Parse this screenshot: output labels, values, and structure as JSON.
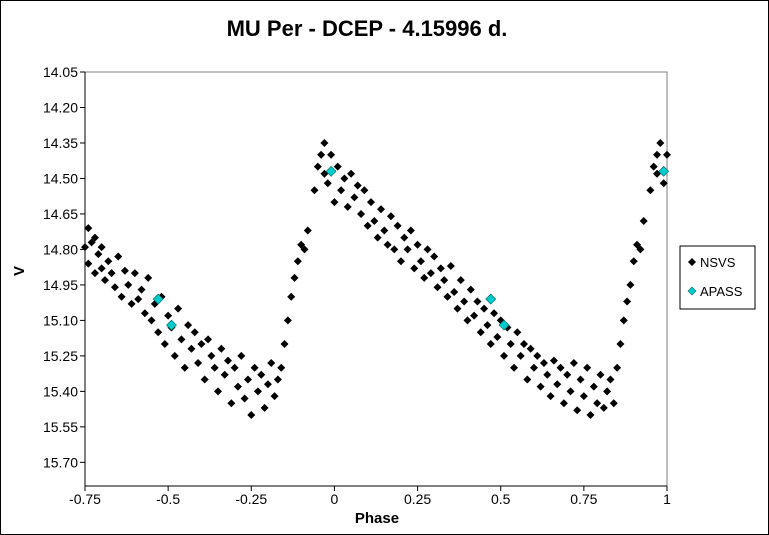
{
  "chart_data": {
    "type": "scatter",
    "title": "MU Per - DCEP - 4.15996 d.",
    "xlabel": "Phase",
    "ylabel": "V",
    "xlim": [
      -0.75,
      1.0
    ],
    "ylim": [
      15.8,
      14.05
    ],
    "y_inverted": true,
    "grid": false,
    "legend_position": "right",
    "x_ticks": [
      "-0.75",
      "-0.5",
      "-0.25",
      "0",
      "0.25",
      "0.5",
      "0.75",
      "1"
    ],
    "x_tick_values": [
      -0.75,
      -0.5,
      -0.25,
      0,
      0.25,
      0.5,
      0.75,
      1.0
    ],
    "y_ticks": [
      "14.05",
      "14.20",
      "14.35",
      "14.50",
      "14.65",
      "14.80",
      "14.95",
      "15.10",
      "15.25",
      "15.40",
      "15.55",
      "15.70"
    ],
    "y_tick_values": [
      14.05,
      14.2,
      14.35,
      14.5,
      14.65,
      14.8,
      14.95,
      15.1,
      15.25,
      15.4,
      15.55,
      15.7
    ],
    "series": [
      {
        "name": "NSVS",
        "color": "#000000",
        "marker": "diamond",
        "points": [
          [
            -0.75,
            14.79
          ],
          [
            -0.74,
            14.71
          ],
          [
            -0.74,
            14.86
          ],
          [
            -0.73,
            14.77
          ],
          [
            -0.72,
            14.75
          ],
          [
            -0.72,
            14.9
          ],
          [
            -0.71,
            14.82
          ],
          [
            -0.7,
            14.79
          ],
          [
            -0.7,
            14.88
          ],
          [
            -0.69,
            14.93
          ],
          [
            -0.68,
            14.85
          ],
          [
            -0.67,
            14.9
          ],
          [
            -0.66,
            14.96
          ],
          [
            -0.65,
            14.83
          ],
          [
            -0.64,
            15.0
          ],
          [
            -0.63,
            14.89
          ],
          [
            -0.62,
            14.95
          ],
          [
            -0.61,
            15.03
          ],
          [
            -0.6,
            14.9
          ],
          [
            -0.59,
            15.01
          ],
          [
            -0.58,
            14.97
          ],
          [
            -0.57,
            15.07
          ],
          [
            -0.56,
            14.92
          ],
          [
            -0.55,
            15.1
          ],
          [
            -0.54,
            15.03
          ],
          [
            -0.53,
            15.15
          ],
          [
            -0.52,
            15.0
          ],
          [
            -0.51,
            15.2
          ],
          [
            -0.5,
            15.08
          ],
          [
            -0.49,
            15.13
          ],
          [
            -0.48,
            15.25
          ],
          [
            -0.47,
            15.05
          ],
          [
            -0.46,
            15.18
          ],
          [
            -0.45,
            15.3
          ],
          [
            -0.44,
            15.12
          ],
          [
            -0.43,
            15.22
          ],
          [
            -0.42,
            15.15
          ],
          [
            -0.41,
            15.28
          ],
          [
            -0.4,
            15.2
          ],
          [
            -0.39,
            15.35
          ],
          [
            -0.38,
            15.18
          ],
          [
            -0.37,
            15.25
          ],
          [
            -0.36,
            15.3
          ],
          [
            -0.35,
            15.4
          ],
          [
            -0.34,
            15.22
          ],
          [
            -0.33,
            15.33
          ],
          [
            -0.32,
            15.27
          ],
          [
            -0.31,
            15.45
          ],
          [
            -0.3,
            15.3
          ],
          [
            -0.29,
            15.38
          ],
          [
            -0.28,
            15.25
          ],
          [
            -0.27,
            15.43
          ],
          [
            -0.26,
            15.35
          ],
          [
            -0.25,
            15.5
          ],
          [
            -0.24,
            15.3
          ],
          [
            -0.23,
            15.4
          ],
          [
            -0.22,
            15.33
          ],
          [
            -0.21,
            15.47
          ],
          [
            -0.2,
            15.37
          ],
          [
            -0.19,
            15.28
          ],
          [
            -0.18,
            15.42
          ],
          [
            -0.17,
            15.35
          ],
          [
            -0.16,
            15.3
          ],
          [
            -0.15,
            15.2
          ],
          [
            -0.14,
            15.1
          ],
          [
            -0.13,
            15.0
          ],
          [
            -0.12,
            14.92
          ],
          [
            -0.11,
            14.85
          ],
          [
            -0.1,
            14.78
          ],
          [
            -0.09,
            14.8
          ],
          [
            -0.08,
            14.72
          ],
          [
            -0.06,
            14.55
          ],
          [
            -0.05,
            14.45
          ],
          [
            -0.04,
            14.4
          ],
          [
            -0.03,
            14.48
          ],
          [
            -0.03,
            14.35
          ],
          [
            -0.02,
            14.52
          ],
          [
            -0.01,
            14.4
          ],
          [
            0.0,
            14.6
          ],
          [
            0.01,
            14.45
          ],
          [
            0.02,
            14.55
          ],
          [
            0.03,
            14.5
          ],
          [
            0.04,
            14.62
          ],
          [
            0.05,
            14.48
          ],
          [
            0.06,
            14.58
          ],
          [
            0.07,
            14.53
          ],
          [
            0.08,
            14.65
          ],
          [
            0.09,
            14.55
          ],
          [
            0.1,
            14.7
          ],
          [
            0.11,
            14.6
          ],
          [
            0.12,
            14.68
          ],
          [
            0.13,
            14.75
          ],
          [
            0.14,
            14.63
          ],
          [
            0.15,
            14.72
          ],
          [
            0.16,
            14.78
          ],
          [
            0.17,
            14.66
          ],
          [
            0.18,
            14.8
          ],
          [
            0.19,
            14.7
          ],
          [
            0.2,
            14.85
          ],
          [
            0.21,
            14.75
          ],
          [
            0.22,
            14.8
          ],
          [
            0.23,
            14.72
          ],
          [
            0.24,
            14.88
          ],
          [
            0.25,
            14.78
          ],
          [
            0.26,
            14.85
          ],
          [
            0.27,
            14.92
          ],
          [
            0.28,
            14.8
          ],
          [
            0.29,
            14.9
          ],
          [
            0.3,
            14.83
          ],
          [
            0.31,
            14.96
          ],
          [
            0.32,
            14.88
          ],
          [
            0.33,
            14.93
          ],
          [
            0.34,
            15.0
          ],
          [
            0.35,
            14.87
          ],
          [
            0.36,
            14.98
          ],
          [
            0.37,
            15.05
          ],
          [
            0.38,
            14.93
          ],
          [
            0.39,
            15.02
          ],
          [
            0.4,
            15.1
          ],
          [
            0.41,
            14.97
          ],
          [
            0.42,
            15.08
          ],
          [
            0.43,
            15.02
          ],
          [
            0.44,
            15.15
          ],
          [
            0.45,
            15.05
          ],
          [
            0.46,
            15.12
          ],
          [
            0.47,
            15.2
          ],
          [
            0.48,
            15.07
          ],
          [
            0.49,
            15.17
          ],
          [
            0.5,
            15.1
          ],
          [
            0.51,
            15.25
          ],
          [
            0.52,
            15.13
          ],
          [
            0.53,
            15.2
          ],
          [
            0.54,
            15.3
          ],
          [
            0.55,
            15.15
          ],
          [
            0.56,
            15.25
          ],
          [
            0.57,
            15.2
          ],
          [
            0.58,
            15.35
          ],
          [
            0.59,
            15.22
          ],
          [
            0.6,
            15.3
          ],
          [
            0.61,
            15.25
          ],
          [
            0.62,
            15.38
          ],
          [
            0.63,
            15.28
          ],
          [
            0.64,
            15.33
          ],
          [
            0.65,
            15.42
          ],
          [
            0.66,
            15.27
          ],
          [
            0.67,
            15.37
          ],
          [
            0.68,
            15.3
          ],
          [
            0.69,
            15.45
          ],
          [
            0.7,
            15.33
          ],
          [
            0.71,
            15.4
          ],
          [
            0.72,
            15.28
          ],
          [
            0.73,
            15.48
          ],
          [
            0.74,
            15.35
          ],
          [
            0.75,
            15.42
          ],
          [
            0.76,
            15.3
          ],
          [
            0.77,
            15.5
          ],
          [
            0.78,
            15.38
          ],
          [
            0.79,
            15.45
          ],
          [
            0.8,
            15.33
          ],
          [
            0.81,
            15.47
          ],
          [
            0.82,
            15.4
          ],
          [
            0.83,
            15.35
          ],
          [
            0.84,
            15.45
          ],
          [
            0.85,
            15.3
          ],
          [
            0.86,
            15.2
          ],
          [
            0.87,
            15.1
          ],
          [
            0.88,
            15.02
          ],
          [
            0.89,
            14.95
          ],
          [
            0.9,
            14.85
          ],
          [
            0.91,
            14.78
          ],
          [
            0.92,
            14.8
          ],
          [
            0.93,
            14.68
          ],
          [
            0.95,
            14.55
          ],
          [
            0.96,
            14.45
          ],
          [
            0.97,
            14.4
          ],
          [
            0.97,
            14.48
          ],
          [
            0.98,
            14.35
          ],
          [
            0.99,
            14.52
          ],
          [
            1.0,
            14.4
          ]
        ]
      },
      {
        "name": "APASS",
        "color": "#00cccc",
        "marker": "diamond",
        "points": [
          [
            -0.53,
            15.01
          ],
          [
            -0.49,
            15.12
          ],
          [
            -0.01,
            14.47
          ],
          [
            0.47,
            15.01
          ],
          [
            0.51,
            15.12
          ],
          [
            0.99,
            14.47
          ]
        ]
      }
    ]
  }
}
